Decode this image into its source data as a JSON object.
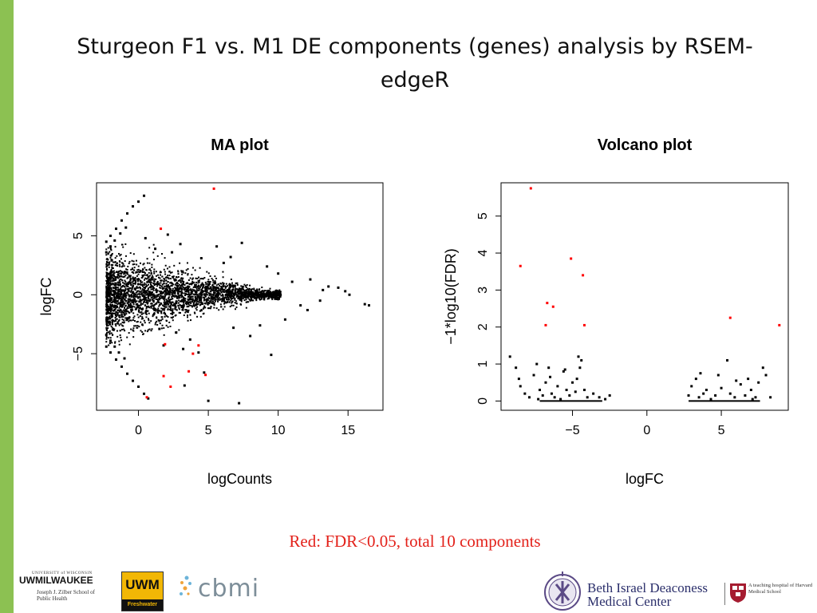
{
  "slide": {
    "title": "Sturgeon F1 vs. M1 DE components (genes) analysis by RSEM-edgeR",
    "caption": "Red: FDR<0.05, total 10 components",
    "accent_color": "#8cc152",
    "caption_color": "#e3211a"
  },
  "chart_data": [
    {
      "type": "scatter",
      "title": "MA plot",
      "xlabel": "logCounts",
      "ylabel": "logFC",
      "xlim": [
        -3,
        17.5
      ],
      "ylim": [
        -9.8,
        9.5
      ],
      "xticks": [
        0,
        5,
        10,
        15
      ],
      "yticks": [
        -5,
        0,
        5
      ],
      "tick_labels_x": [
        "0",
        "5",
        "10",
        "15"
      ],
      "tick_labels_y": [
        "−5",
        "0",
        "5"
      ],
      "series": [
        {
          "color": "#000000",
          "points": [
            [
              -2.3,
              4.5
            ],
            [
              -2.0,
              5.0
            ],
            [
              -1.6,
              5.6
            ],
            [
              -1.2,
              6.3
            ],
            [
              -0.8,
              6.9
            ],
            [
              -0.4,
              7.5
            ],
            [
              0.0,
              7.9
            ],
            [
              0.4,
              8.4
            ],
            [
              -2.3,
              3.6
            ],
            [
              -2.0,
              4.1
            ],
            [
              -1.7,
              4.6
            ],
            [
              -1.3,
              5.2
            ],
            [
              -0.9,
              5.7
            ],
            [
              -2.3,
              -4.4
            ],
            [
              -2.0,
              -4.9
            ],
            [
              -1.6,
              -5.5
            ],
            [
              -1.2,
              -6.1
            ],
            [
              -0.8,
              -6.7
            ],
            [
              -0.4,
              -7.3
            ],
            [
              0.0,
              -7.8
            ],
            [
              0.4,
              -8.4
            ],
            [
              0.7,
              -8.8
            ],
            [
              -2.3,
              -3.4
            ],
            [
              -2.0,
              -3.9
            ],
            [
              -1.7,
              -4.4
            ],
            [
              -1.4,
              -4.9
            ],
            [
              -1.0,
              -5.4
            ],
            [
              0.5,
              4.8
            ],
            [
              1.2,
              3.9
            ],
            [
              2.1,
              5.1
            ],
            [
              2.4,
              3.6
            ],
            [
              3.0,
              4.3
            ],
            [
              5.6,
              4.1
            ],
            [
              6.6,
              3.2
            ],
            [
              7.4,
              4.4
            ],
            [
              1.8,
              -4.3
            ],
            [
              3.2,
              -4.6
            ],
            [
              3.7,
              -3.8
            ],
            [
              4.3,
              -4.9
            ],
            [
              4.7,
              -6.6
            ],
            [
              3.3,
              -7.7
            ],
            [
              9.5,
              -5.1
            ],
            [
              8.0,
              -3.5
            ],
            [
              7.2,
              -9.2
            ],
            [
              5.0,
              -9.0
            ],
            [
              11.0,
              1.1
            ],
            [
              12.3,
              1.3
            ],
            [
              13.2,
              0.4
            ],
            [
              13.6,
              0.7
            ],
            [
              14.3,
              0.6
            ],
            [
              14.8,
              0.3
            ],
            [
              16.2,
              -0.8
            ],
            [
              16.5,
              -0.9
            ],
            [
              15.1,
              0.0
            ],
            [
              12.1,
              -1.3
            ],
            [
              10.5,
              -2.1
            ],
            [
              8.7,
              -2.6
            ],
            [
              9.2,
              2.4
            ],
            [
              6.1,
              2.7
            ],
            [
              4.5,
              3.1
            ],
            [
              2.7,
              -3.2
            ],
            [
              1.5,
              -2.9
            ],
            [
              6.8,
              -2.8
            ],
            [
              10.0,
              1.8
            ],
            [
              11.6,
              -0.9
            ],
            [
              13.0,
              -0.5
            ]
          ]
        },
        {
          "name": "FDR<0.05",
          "color": "#ff0000",
          "points": [
            [
              5.4,
              9.0
            ],
            [
              1.6,
              5.6
            ],
            [
              1.9,
              -4.2
            ],
            [
              3.9,
              -5.0
            ],
            [
              4.3,
              -4.3
            ],
            [
              1.8,
              -6.9
            ],
            [
              2.3,
              -7.8
            ],
            [
              4.8,
              -6.8
            ],
            [
              0.6,
              -8.7
            ],
            [
              3.6,
              -6.5
            ]
          ]
        }
      ]
    },
    {
      "type": "scatter",
      "title": "Volcano plot",
      "xlabel": "logFC",
      "ylabel": "−1*log10(FDR)",
      "xlim": [
        -9.8,
        9.5
      ],
      "ylim": [
        -0.25,
        5.9
      ],
      "xticks": [
        -5,
        0,
        5
      ],
      "yticks": [
        0,
        1,
        2,
        3,
        4,
        5
      ],
      "tick_labels_x": [
        "−5",
        "0",
        "5"
      ],
      "tick_labels_y": [
        "0",
        "1",
        "2",
        "3",
        "4",
        "5"
      ],
      "series": [
        {
          "color": "#000000",
          "points": [
            [
              -9.2,
              1.2
            ],
            [
              -8.8,
              0.9
            ],
            [
              -8.5,
              0.4
            ],
            [
              -8.2,
              0.2
            ],
            [
              -7.9,
              0.1
            ],
            [
              -7.6,
              0.7
            ],
            [
              -7.4,
              1.0
            ],
            [
              -7.2,
              0.3
            ],
            [
              -7.0,
              0.15
            ],
            [
              -6.8,
              0.5
            ],
            [
              -6.6,
              0.9
            ],
            [
              -6.4,
              0.2
            ],
            [
              -6.2,
              0.1
            ],
            [
              -6.0,
              0.4
            ],
            [
              -5.8,
              0.05
            ],
            [
              -5.6,
              0.8
            ],
            [
              -5.4,
              0.3
            ],
            [
              -5.2,
              0.15
            ],
            [
              -5.0,
              0.5
            ],
            [
              -4.8,
              0.25
            ],
            [
              -4.6,
              1.2
            ],
            [
              -4.5,
              0.9
            ],
            [
              -4.4,
              1.1
            ],
            [
              -4.2,
              0.3
            ],
            [
              -4.0,
              0.1
            ],
            [
              -3.6,
              0.2
            ],
            [
              -3.2,
              0.1
            ],
            [
              -2.8,
              0.05
            ],
            [
              -2.5,
              0.15
            ],
            [
              -8.6,
              0.6
            ],
            [
              -7.3,
              0.05
            ],
            [
              -6.5,
              0.65
            ],
            [
              -5.5,
              0.85
            ],
            [
              -4.7,
              0.6
            ],
            [
              2.8,
              0.15
            ],
            [
              3.0,
              0.4
            ],
            [
              3.3,
              0.6
            ],
            [
              3.5,
              0.1
            ],
            [
              3.8,
              0.2
            ],
            [
              4.0,
              0.3
            ],
            [
              4.3,
              0.05
            ],
            [
              4.6,
              0.15
            ],
            [
              5.0,
              0.35
            ],
            [
              5.4,
              1.1
            ],
            [
              5.6,
              0.2
            ],
            [
              5.9,
              0.1
            ],
            [
              6.3,
              0.45
            ],
            [
              6.6,
              0.15
            ],
            [
              6.8,
              0.6
            ],
            [
              7.0,
              0.3
            ],
            [
              7.3,
              0.1
            ],
            [
              7.5,
              0.5
            ],
            [
              7.8,
              0.9
            ],
            [
              8.0,
              0.7
            ],
            [
              8.3,
              0.1
            ],
            [
              7.1,
              0.05
            ],
            [
              6.0,
              0.55
            ],
            [
              4.8,
              0.7
            ],
            [
              3.6,
              0.75
            ]
          ],
          "baseline_segments": [
            [
              -7.2,
              -3.0
            ],
            [
              2.8,
              7.6
            ]
          ]
        },
        {
          "name": "FDR<0.05",
          "color": "#ff0000",
          "points": [
            [
              -7.8,
              5.75
            ],
            [
              -8.5,
              3.65
            ],
            [
              -5.1,
              3.85
            ],
            [
              -4.3,
              3.4
            ],
            [
              -6.7,
              2.65
            ],
            [
              -6.3,
              2.55
            ],
            [
              -6.8,
              2.05
            ],
            [
              -4.2,
              2.05
            ],
            [
              5.6,
              2.25
            ],
            [
              8.9,
              2.05
            ]
          ]
        }
      ]
    }
  ],
  "logos": {
    "uwm": {
      "university_line": "UNIVERSITY of WISCONSIN",
      "name": "UWMILWAUKEE",
      "school": "Joseph J. Zilber School of Public Health"
    },
    "uwm_freshwater": {
      "mark": "UWM",
      "subtitle": "Freshwater"
    },
    "cbmi": {
      "text": "cbmi"
    },
    "bidmc": {
      "name": "Beth Israel Deaconess Medical Center",
      "affiliation": "A teaching hospital of Harvard Medical School"
    }
  }
}
